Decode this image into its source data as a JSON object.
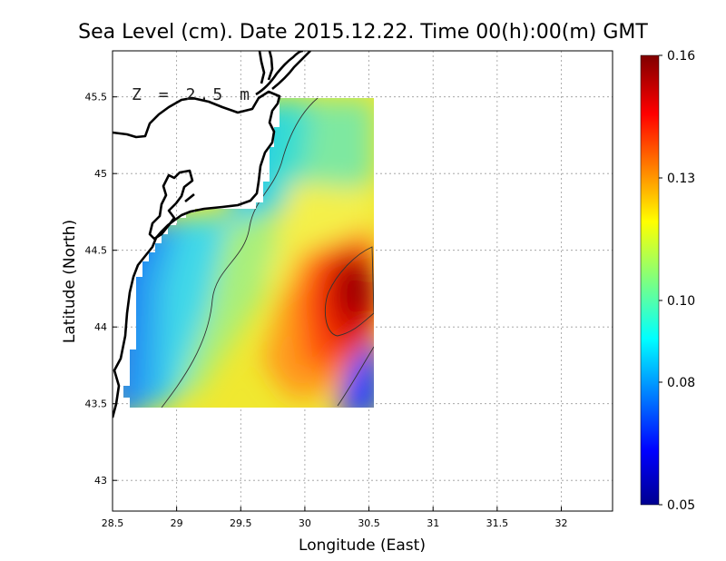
{
  "chart_data": {
    "type": "heatmap",
    "title": "Sea Level (cm). Date 2015.12.22. Time 00(h):00(m) GMT",
    "xlabel": "Longitude (East)",
    "ylabel": "Latitude (North)",
    "annotation": "Z = 2.5 m",
    "xlim": [
      28.5,
      32.4
    ],
    "ylim": [
      42.8,
      45.8
    ],
    "x_ticks": [
      28.5,
      29,
      29.5,
      30,
      30.5,
      31,
      31.5,
      32
    ],
    "x_tick_labels": [
      "28.5",
      "29",
      "29.5",
      "30",
      "30.5",
      "31",
      "31.5",
      "32"
    ],
    "y_ticks": [
      43,
      43.5,
      44,
      44.5,
      45,
      45.5
    ],
    "y_tick_labels": [
      "43",
      "43.5",
      "44",
      "44.5",
      "45",
      "45.5"
    ],
    "grid": true,
    "colorbar": {
      "min": 0.05,
      "max": 0.16,
      "ticks": [
        0.05,
        0.08,
        0.1,
        0.13,
        0.16
      ],
      "tick_labels": [
        "0.05",
        "0.08",
        "0.10",
        "0.13",
        "0.16"
      ],
      "colormap": "jet"
    },
    "field_extent": {
      "lon": [
        28.62,
        30.55
      ],
      "lat": [
        43.48,
        45.5
      ]
    },
    "field_max": {
      "lon": 30.42,
      "lat": 44.3,
      "value": 0.16
    },
    "field_min": {
      "lon": 30.5,
      "lat": 43.55,
      "value": 0.05
    }
  }
}
